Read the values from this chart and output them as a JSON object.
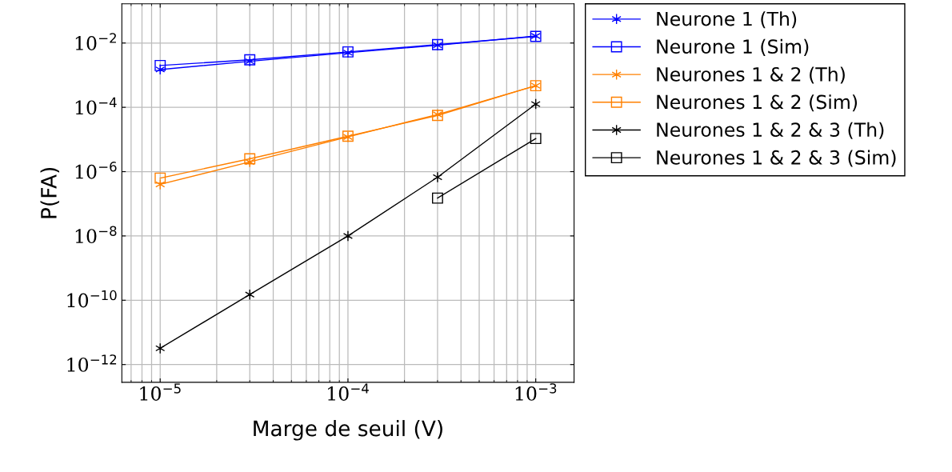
{
  "chart_data": {
    "type": "line",
    "xlabel": "Marge de seuil (V)",
    "ylabel": "P(FA)",
    "log": "xy",
    "grid": true,
    "legend": "top right",
    "x": [
      1e-05,
      3e-05,
      0.0001,
      0.0003,
      0.001
    ],
    "xlim": [
      6.25e-06,
      0.0016
    ],
    "ylim": [
      2.8e-13,
      0.166
    ],
    "xticks": [
      {
        "value": 1e-05,
        "label": "10$^{−5}$"
      },
      {
        "value": 0.0001,
        "label": "10$^{−4}$"
      },
      {
        "value": 0.001,
        "label": "10$^{−3}$"
      }
    ],
    "yticks": [
      {
        "value": 1e-12,
        "label": "10$^{−12}$"
      },
      {
        "value": 1e-10,
        "label": "10$^{−10}$"
      },
      {
        "value": 1e-08,
        "label": "10$^{−8}$"
      },
      {
        "value": 1e-06,
        "label": "10$^{−6}$"
      },
      {
        "value": 0.0001,
        "label": "10$^{−4}$"
      },
      {
        "value": 0.01,
        "label": "10$^{−2}$"
      }
    ],
    "series": [
      {
        "name": "Neurone 1 (Th)",
        "color": "#0000ff",
        "marker": "cross",
        "values": [
          0.0015,
          0.0027,
          0.005,
          0.0085,
          0.0166
        ]
      },
      {
        "name": "Neurone 1 (Sim)",
        "color": "#0000ff",
        "marker": "square",
        "values": [
          0.002,
          0.003,
          0.0053,
          0.0089,
          0.016
        ]
      },
      {
        "name": "Neurones 1 & 2 (Th)",
        "color": "#ff8000",
        "marker": "cross",
        "values": [
          4e-07,
          2e-06,
          1.2e-05,
          6e-05,
          0.00047
        ]
      },
      {
        "name": "Neurones 1 & 2 (Sim)",
        "color": "#ff8000",
        "marker": "square",
        "values": [
          6.3e-07,
          2.5e-06,
          1.26e-05,
          5.6e-05,
          0.00047
        ]
      },
      {
        "name": "Neurones 1 & 2 & 3 (Th)",
        "color": "#000000",
        "marker": "cross",
        "values": [
          3.2e-12,
          1.5e-10,
          1e-08,
          6.7e-07,
          0.000126
        ]
      },
      {
        "name": "Neurones 1 & 2 & 3 (Sim)",
        "color": "#000000",
        "marker": "square",
        "values": [
          null,
          null,
          null,
          1.5e-07,
          1.07e-05
        ]
      }
    ]
  }
}
